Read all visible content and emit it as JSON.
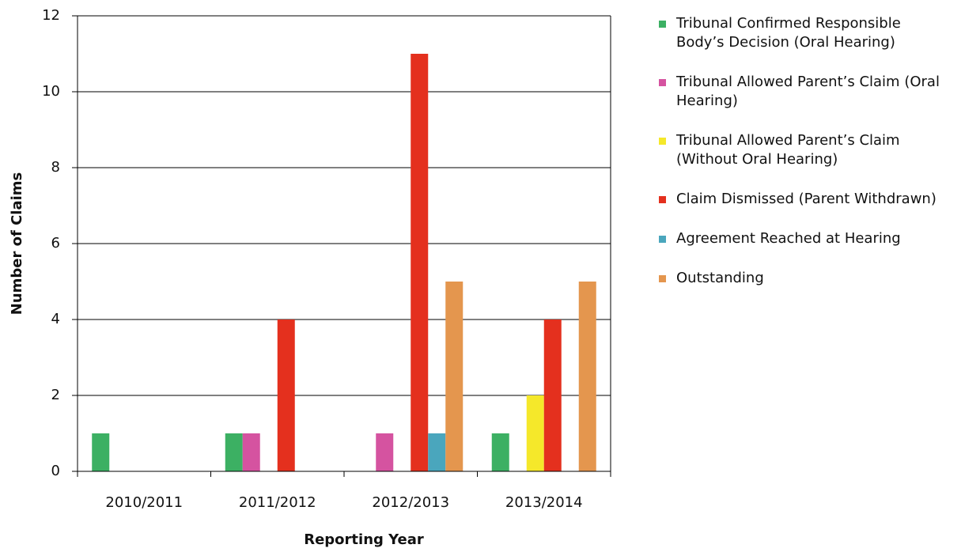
{
  "chart_data": {
    "type": "bar",
    "categories": [
      "2010/2011",
      "2011/2012",
      "2012/2013",
      "2013/2014"
    ],
    "x_label": "Reporting Year",
    "y_label": "Number of Claims",
    "ylim": [
      0,
      12
    ],
    "yticks": [
      0,
      2,
      4,
      6,
      8,
      10,
      12
    ],
    "grid": true,
    "legend": "right",
    "series": [
      {
        "name": "Tribunal Confirmed Responsible Body’s Decision (Oral Hearing)",
        "color": "#3cb063",
        "values": [
          1,
          1,
          0,
          1
        ]
      },
      {
        "name": "Tribunal Allowed Parent’s Claim (Oral Hearing)",
        "color": "#d553a0",
        "values": [
          0,
          1,
          1,
          0
        ]
      },
      {
        "name": "Tribunal Allowed Parent’s Claim (Without Oral Hearing)",
        "color": "#f5e82a",
        "values": [
          0,
          0,
          0,
          2
        ]
      },
      {
        "name": "Claim Dismissed (Parent Withdrawn)",
        "color": "#e4301e",
        "values": [
          0,
          4,
          11,
          4
        ]
      },
      {
        "name": "Agreement Reached at Hearing",
        "color": "#4aa6bd",
        "values": [
          0,
          0,
          1,
          0
        ]
      },
      {
        "name": "Outstanding",
        "color": "#e4964e",
        "values": [
          0,
          0,
          5,
          5
        ]
      }
    ]
  }
}
